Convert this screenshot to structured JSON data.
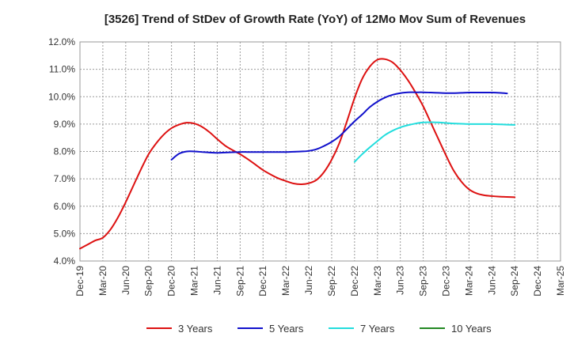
{
  "chart_data": {
    "type": "line",
    "title": "[3526]  Trend of StDev of Growth Rate (YoY) of 12Mo Mov Sum of Revenues",
    "xlabel": "",
    "ylabel": "",
    "ylim": [
      4.0,
      12.0
    ],
    "y_ticks": [
      "4.0%",
      "5.0%",
      "6.0%",
      "7.0%",
      "8.0%",
      "9.0%",
      "10.0%",
      "11.0%",
      "12.0%"
    ],
    "x_ticks": [
      "Dec-19",
      "Mar-20",
      "Jun-20",
      "Sep-20",
      "Dec-20",
      "Mar-21",
      "Jun-21",
      "Sep-21",
      "Dec-21",
      "Mar-22",
      "Jun-22",
      "Sep-22",
      "Dec-22",
      "Mar-23",
      "Jun-23",
      "Sep-23",
      "Dec-23",
      "Mar-24",
      "Jun-24",
      "Sep-24",
      "Dec-24",
      "Mar-25"
    ],
    "grid": true,
    "legend_position": "bottom",
    "series": [
      {
        "name": "3 Years",
        "color": "#dd1111",
        "start_month_index": 0,
        "values": [
          4.45,
          4.6,
          4.75,
          4.85,
          5.15,
          5.6,
          6.15,
          6.75,
          7.35,
          7.9,
          8.3,
          8.62,
          8.85,
          8.98,
          9.05,
          9.02,
          8.9,
          8.7,
          8.45,
          8.22,
          8.05,
          7.9,
          7.72,
          7.52,
          7.32,
          7.16,
          7.02,
          6.92,
          6.83,
          6.8,
          6.84,
          6.96,
          7.25,
          7.7,
          8.3,
          9.1,
          9.95,
          10.65,
          11.1,
          11.35,
          11.37,
          11.25,
          10.97,
          10.6,
          10.15,
          9.65,
          9.05,
          8.45,
          7.85,
          7.3,
          6.9,
          6.62,
          6.47,
          6.4,
          6.37,
          6.35,
          6.34,
          6.33
        ]
      },
      {
        "name": "5 Years",
        "color": "#1111cc",
        "start_month_index": 12,
        "values": [
          7.7,
          7.92,
          8.0,
          8.0,
          7.98,
          7.96,
          7.95,
          7.96,
          7.97,
          7.98,
          7.98,
          7.98,
          7.98,
          7.98,
          7.98,
          7.98,
          7.99,
          8.0,
          8.02,
          8.08,
          8.2,
          8.35,
          8.55,
          8.82,
          9.1,
          9.35,
          9.62,
          9.82,
          9.97,
          10.07,
          10.13,
          10.16,
          10.16,
          10.16,
          10.15,
          10.14,
          10.13,
          10.13,
          10.14,
          10.15,
          10.15,
          10.15,
          10.15,
          10.14,
          10.12
        ]
      },
      {
        "name": "7 Years",
        "color": "#22dddd",
        "start_month_index": 36,
        "values": [
          7.62,
          7.9,
          8.15,
          8.38,
          8.6,
          8.76,
          8.88,
          8.96,
          9.02,
          9.06,
          9.07,
          9.06,
          9.04,
          9.02,
          9.01,
          9.0,
          9.0,
          9.0,
          9.0,
          8.99,
          8.98,
          8.97
        ]
      },
      {
        "name": "10 Years",
        "color": "#228822",
        "start_month_index": 0,
        "values": []
      }
    ]
  }
}
